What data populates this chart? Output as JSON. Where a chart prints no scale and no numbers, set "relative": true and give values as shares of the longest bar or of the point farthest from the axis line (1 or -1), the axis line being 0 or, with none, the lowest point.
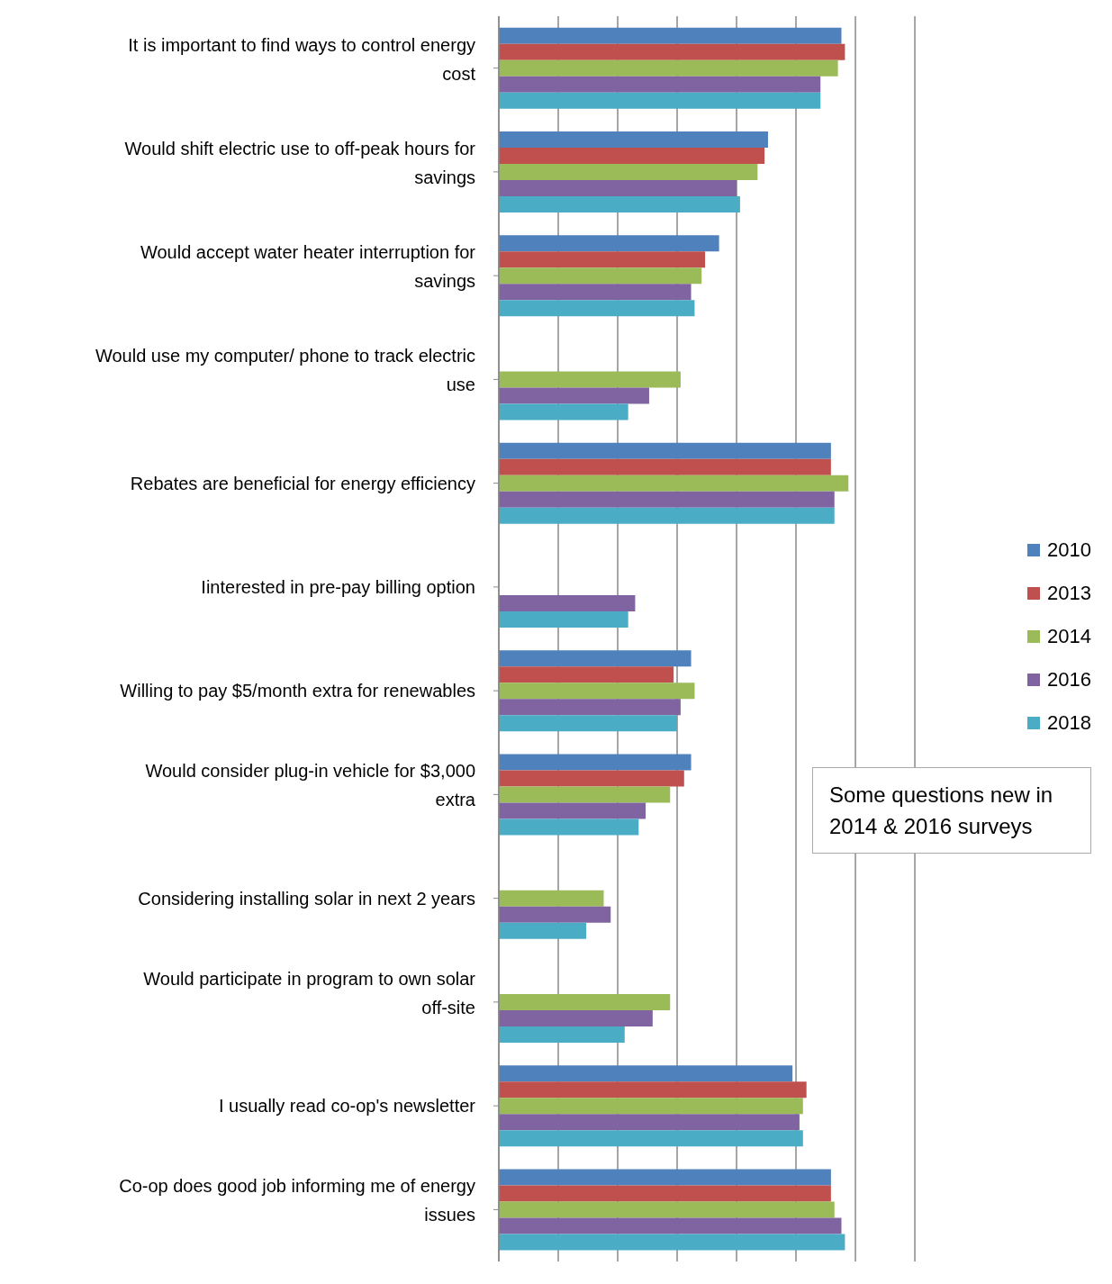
{
  "chart_data": {
    "type": "bar",
    "orientation": "horizontal",
    "relative": true,
    "grid": "x",
    "legend": "right",
    "categories": [
      "It is important to find ways to control energy cost",
      "Would shift electric use to off-peak hours for savings",
      "Would accept water heater interruption for savings",
      "Would use my computer/ phone to track electric use",
      "Rebates are beneficial for energy efficiency",
      "Iinterested in pre-pay billing option",
      "Willing to pay $5/month extra for renewables",
      "Would consider plug-in vehicle for $3,000 extra",
      "Considering installing solar in next 2 years",
      "Would participate in program to own solar off-site",
      "I usually read co-op's newsletter",
      "Co-op does good job informing me of energy issues"
    ],
    "series": [
      {
        "name": "2010",
        "color": "#4f81bd",
        "values": [
          0.98,
          0.77,
          0.63,
          null,
          0.95,
          null,
          0.55,
          0.55,
          null,
          null,
          0.84,
          0.95
        ]
      },
      {
        "name": "2013",
        "color": "#c0504d",
        "values": [
          0.99,
          0.76,
          0.59,
          null,
          0.95,
          null,
          0.5,
          0.53,
          null,
          null,
          0.88,
          0.95
        ]
      },
      {
        "name": "2014",
        "color": "#9bbb59",
        "values": [
          0.97,
          0.74,
          0.58,
          0.52,
          1,
          null,
          0.56,
          0.49,
          0.3,
          0.49,
          0.87,
          0.96
        ]
      },
      {
        "name": "2016",
        "color": "#8064a2",
        "values": [
          0.92,
          0.68,
          0.55,
          0.43,
          0.96,
          0.39,
          0.52,
          0.42,
          0.32,
          0.44,
          0.86,
          0.98
        ]
      },
      {
        "name": "2018",
        "color": "#4bacc6",
        "values": [
          0.92,
          0.69,
          0.56,
          0.37,
          0.96,
          0.37,
          0.51,
          0.4,
          0.25,
          0.36,
          0.87,
          0.99
        ]
      }
    ],
    "annotations": [
      "Some questions new in 2014 & 2016 surveys"
    ]
  }
}
